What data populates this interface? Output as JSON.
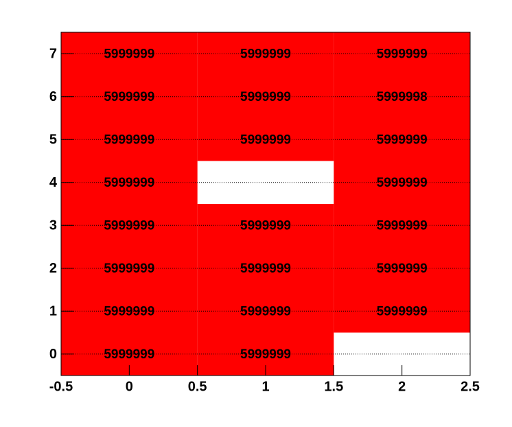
{
  "chart_data": {
    "type": "heatmap",
    "color": "#ff0000",
    "x": [
      0,
      1,
      2
    ],
    "y": [
      0,
      1,
      2,
      3,
      4,
      5,
      6,
      7
    ],
    "values": [
      [
        5999999,
        5999999,
        null
      ],
      [
        5999999,
        5999999,
        5999999
      ],
      [
        5999999,
        5999999,
        5999999
      ],
      [
        5999999,
        5999999,
        5999999
      ],
      [
        5999999,
        null,
        5999999
      ],
      [
        5999999,
        5999999,
        5999999
      ],
      [
        5999999,
        5999999,
        5999998
      ],
      [
        5999999,
        5999999,
        5999999
      ]
    ],
    "xlim": [
      -0.5,
      2.5
    ],
    "ylim": [
      -0.5,
      7.5
    ],
    "xticks": [
      -0.5,
      0,
      0.5,
      1,
      1.5,
      2,
      2.5
    ],
    "yticks": [
      0,
      1,
      2,
      3,
      4,
      5,
      6,
      7
    ],
    "grid": true
  }
}
